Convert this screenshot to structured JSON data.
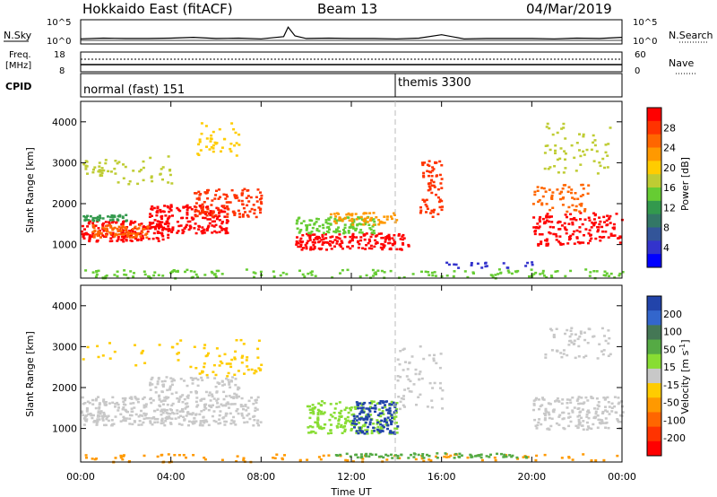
{
  "header": {
    "site": "Hokkaido East (fitACF)",
    "beam": "Beam 13",
    "date": "04/Mar/2019"
  },
  "noise_panel": {
    "left_label": "N.Sky",
    "right_label": "N.Search",
    "left_ticks": [
      "10^5",
      "10^0"
    ],
    "right_ticks": [
      "10^5",
      "10^0"
    ]
  },
  "freq_panel": {
    "left_label_1": "Freq.",
    "left_label_2": "[MHz]",
    "left_ticks": [
      "18",
      "8"
    ],
    "right_label": "Nave",
    "right_ticks": [
      "60",
      "0"
    ]
  },
  "cpid_panel": {
    "label": "CPID",
    "modes": [
      {
        "name": "normal (fast) 151",
        "start_hour": 0
      },
      {
        "name": "themis 3300",
        "start_hour": 14
      }
    ]
  },
  "x_axis": {
    "label": "Time UT",
    "ticks": [
      "00:00",
      "04:00",
      "08:00",
      "12:00",
      "16:00",
      "20:00",
      "00:00"
    ]
  },
  "power_panel": {
    "ylabel": "Slant Range [km]",
    "yticks": [
      "1000",
      "2000",
      "3000",
      "4000"
    ],
    "colorbar_label": "Power [dB]",
    "colorbar_ticks": [
      "28",
      "24",
      "20",
      "16",
      "12",
      "8",
      "4"
    ],
    "colors": [
      "#ff0000",
      "#ff3300",
      "#ff6600",
      "#ff9900",
      "#ffcc00",
      "#bfcc33",
      "#66cc33",
      "#33994d",
      "#337766",
      "#335599",
      "#3333cc",
      "#0000ff"
    ]
  },
  "velocity_panel": {
    "ylabel": "Slant Range [km]",
    "yticks": [
      "1000",
      "2000",
      "3000",
      "4000"
    ],
    "colorbar_label": "Velocity [m s-1]",
    "colorbar_label_main": "Velocity [m s",
    "colorbar_label_exp": "-1",
    "colorbar_label_end": "]",
    "colorbar_ticks": [
      "200",
      "100",
      "50",
      "15",
      "-15",
      "-50",
      "-100",
      "-200"
    ],
    "colors": [
      "#2244aa",
      "#3366cc",
      "#447755",
      "#55aa44",
      "#88dd33",
      "#c8c8c8",
      "#ffcc00",
      "#ff9900",
      "#ff6600",
      "#ff3300",
      "#ff0000"
    ]
  },
  "chart_data": [
    {
      "type": "line",
      "title": "",
      "series": [
        {
          "name": "N.Sky",
          "x_hours": [
            0,
            1,
            2,
            3,
            4,
            5,
            6,
            7,
            8,
            9,
            9.2,
            9.5,
            10,
            11,
            12,
            13,
            14,
            15,
            16,
            17,
            18,
            19,
            20,
            21,
            22,
            23,
            24
          ],
          "values_log10": [
            0.4,
            0.6,
            0.5,
            0.5,
            0.6,
            0.8,
            0.5,
            0.6,
            0.4,
            1.0,
            3.5,
            1.2,
            0.5,
            0.6,
            0.5,
            0.5,
            0.4,
            0.6,
            1.5,
            0.4,
            0.5,
            0.5,
            0.5,
            0.4,
            0.6,
            0.5,
            0.8
          ]
        }
      ],
      "ylim_log10": [
        0,
        5
      ]
    },
    {
      "type": "heatmap",
      "ylabel": "Slant Range [km]",
      "xlabel": "Time UT",
      "x_range_hours": [
        0,
        24
      ],
      "y_range_km": [
        180,
        4500
      ],
      "colorbar": "Power [dB]",
      "colorbar_range": [
        0,
        30
      ]
    },
    {
      "type": "heatmap",
      "ylabel": "Slant Range [km]",
      "xlabel": "Time UT",
      "x_range_hours": [
        0,
        24
      ],
      "y_range_km": [
        180,
        4500
      ],
      "colorbar": "Velocity [m s-1]",
      "colorbar_range": [
        -200,
        200
      ]
    }
  ]
}
